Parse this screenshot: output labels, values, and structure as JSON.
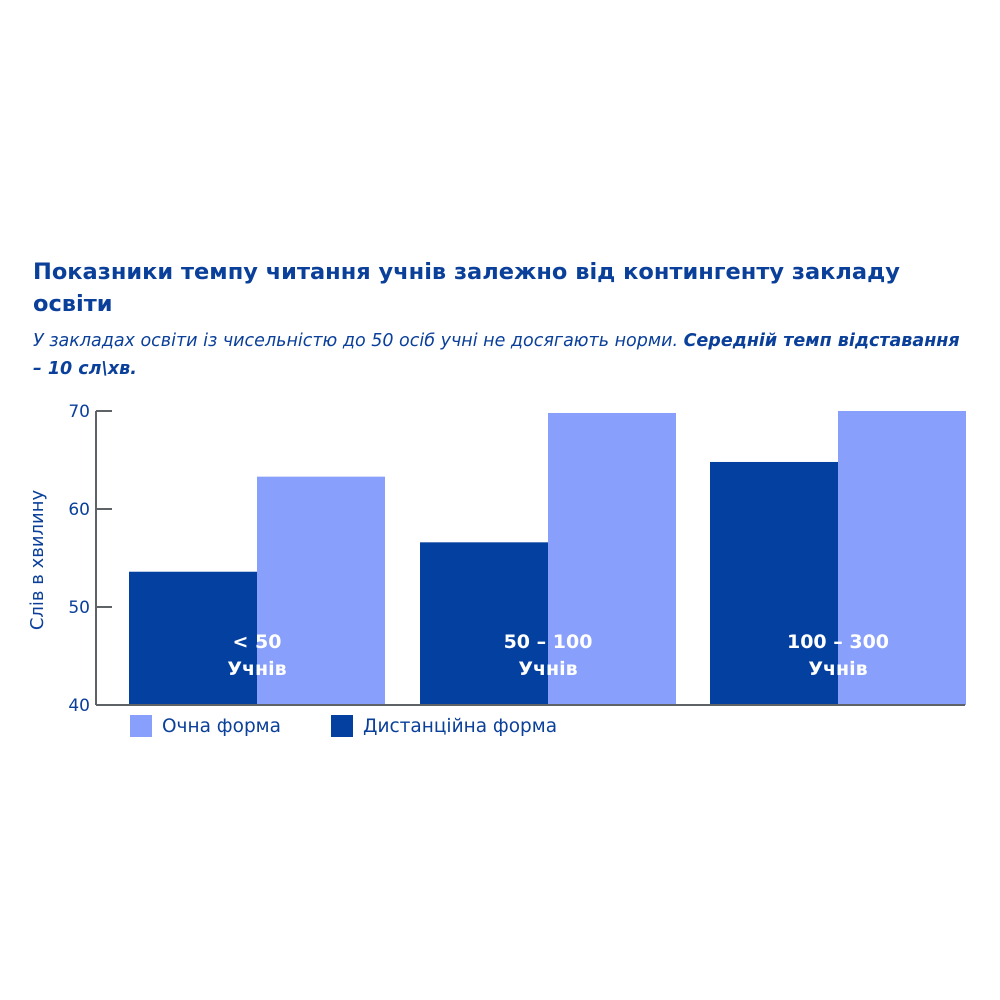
{
  "title": "Показники темпу читання учнів залежно від контингенту закладу освіти",
  "subtitle": {
    "normal": "У закладах освіти із чисельністю до 50 осіб учні не досягають норми.",
    "bold": "Середній темп відставання – 10 сл\\хв."
  },
  "colors": {
    "text": "#0a3f9a",
    "in_person": "#889ffc",
    "distance": "#0440a0",
    "axis": "#5f6368"
  },
  "chart_data": {
    "type": "bar",
    "title": "Показники темпу читання учнів залежно від контингенту закладу освіти",
    "ylabel": "Слів в хвилину",
    "xlabel": "",
    "ylim": [
      40,
      70
    ],
    "yticks": [
      40,
      50,
      60,
      70
    ],
    "categories": [
      {
        "line1": "< 50",
        "line2": "Учнів"
      },
      {
        "line1": "50 – 100",
        "line2": "Учнів"
      },
      {
        "line1": "100 – 300",
        "line2": "Учнів"
      }
    ],
    "series": [
      {
        "name": "Дистанційна форма",
        "values": [
          53.6,
          56.6,
          64.8
        ]
      },
      {
        "name": "Очна форма",
        "values": [
          63.3,
          69.8,
          70.0
        ]
      }
    ],
    "legend": [
      "Очна форма",
      "Дистанційна форма"
    ],
    "legend_position": "bottom-left",
    "grid": false
  }
}
